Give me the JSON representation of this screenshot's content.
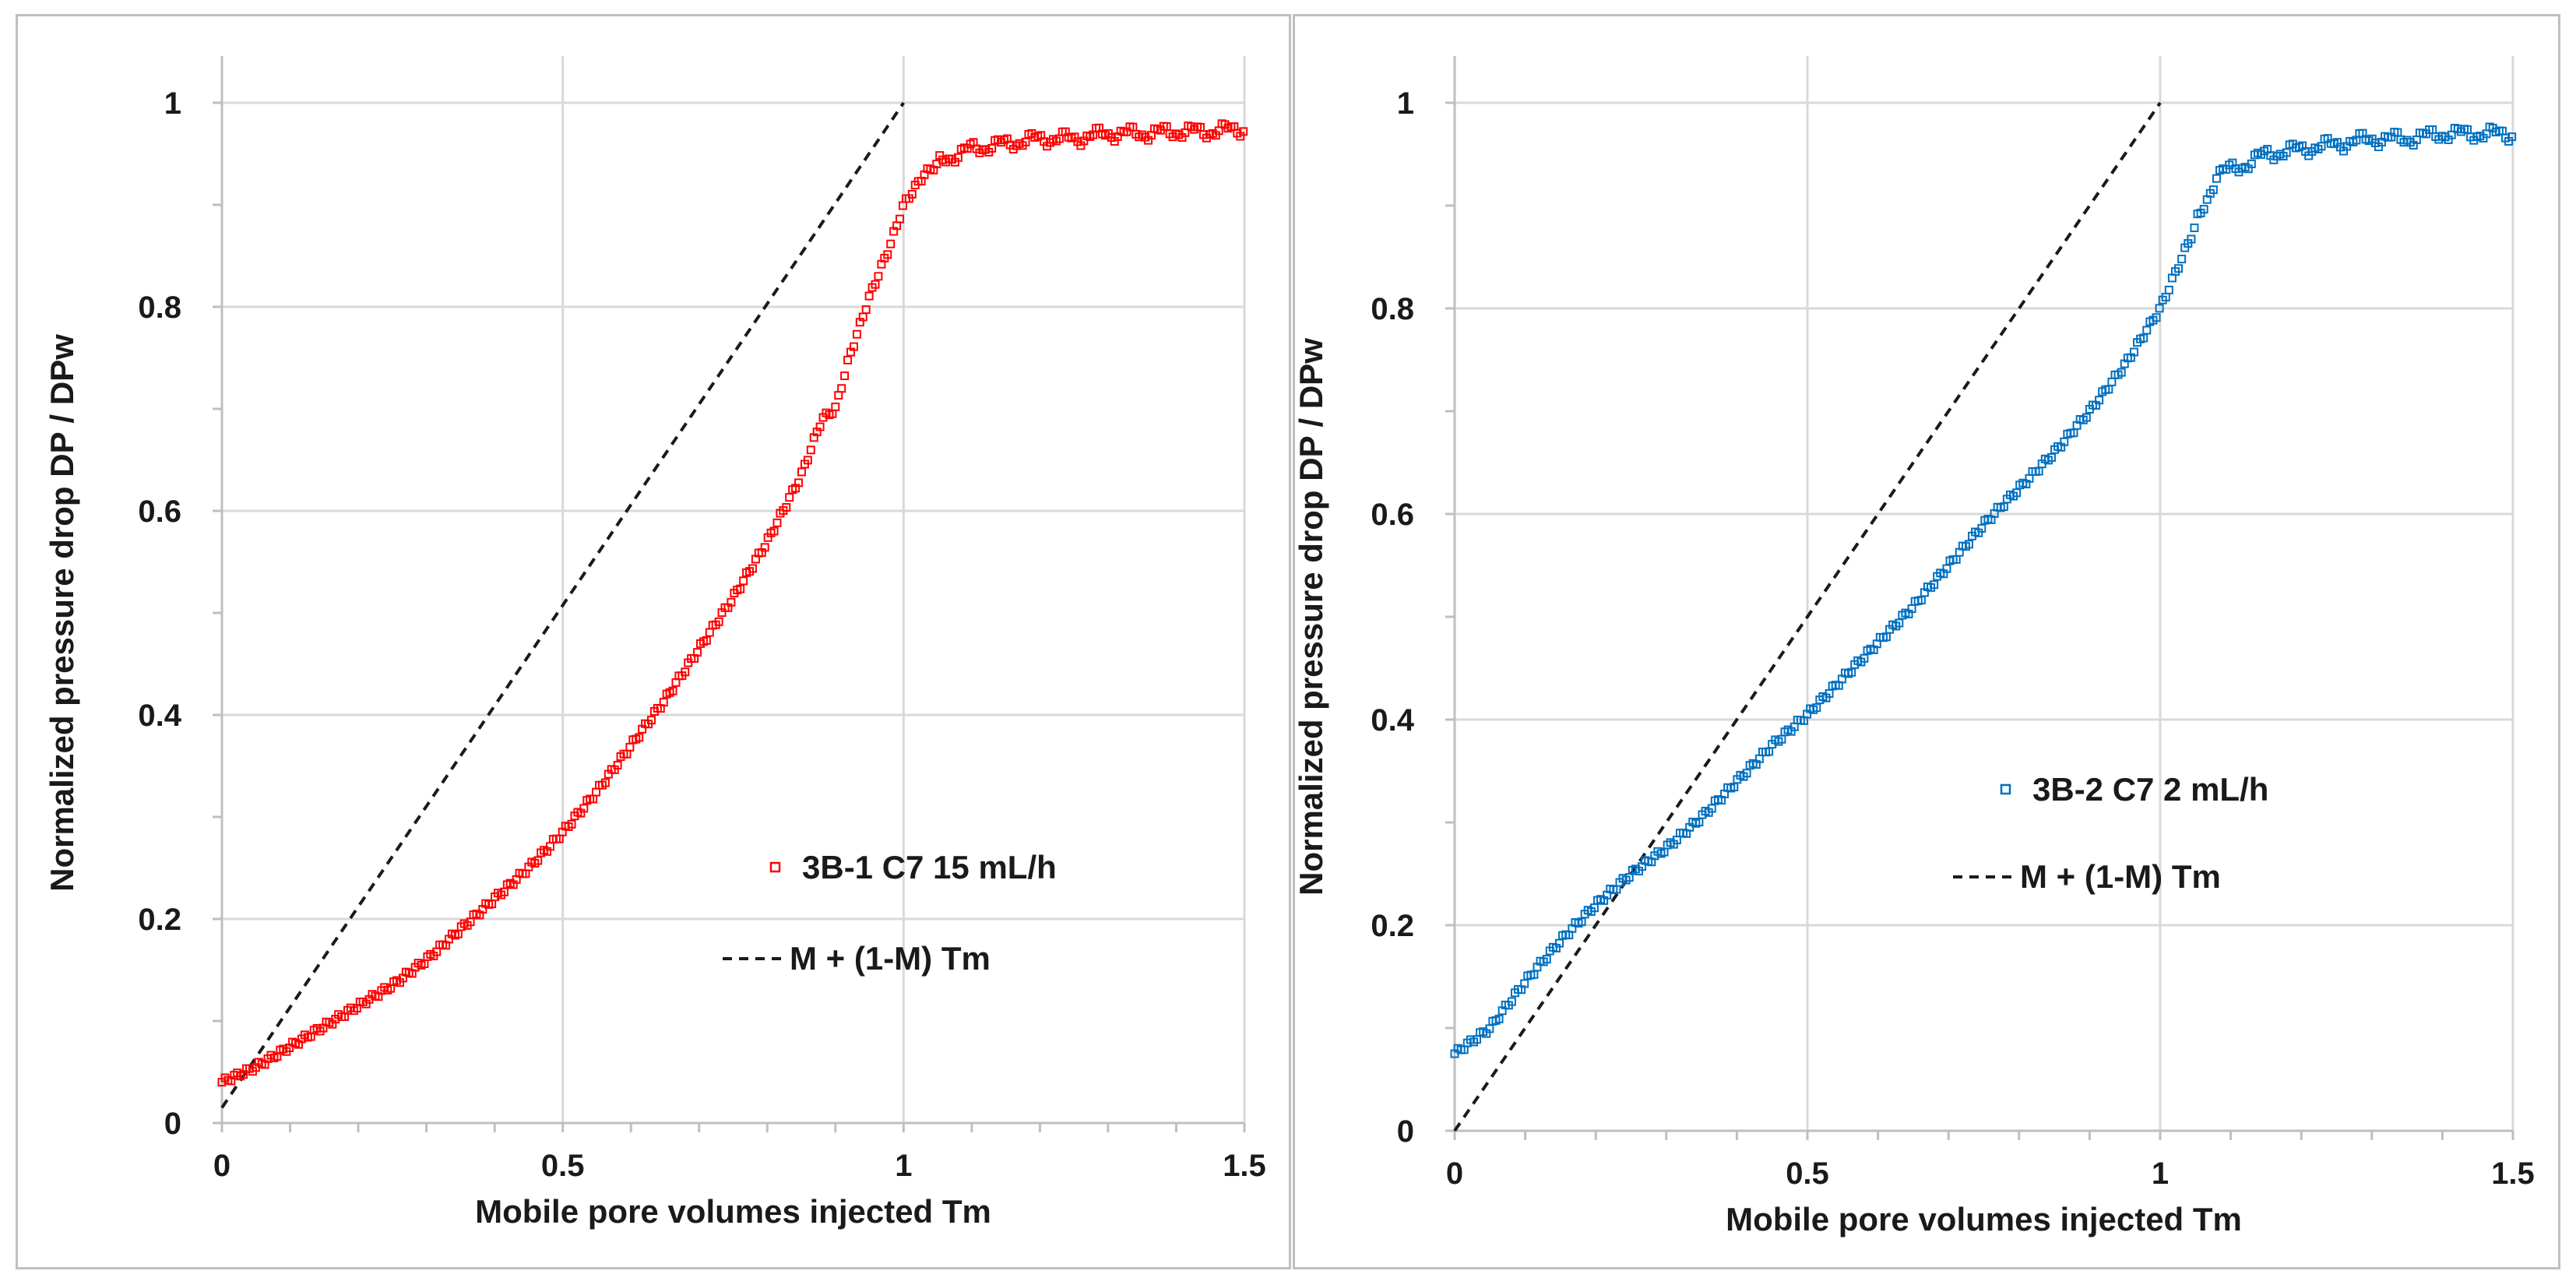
{
  "chart_data": [
    {
      "type": "scatter",
      "title": "",
      "xlabel": "Mobile pore volumes injected Tm",
      "ylabel": "Normalized pressure drop DP / DPw",
      "xlim": [
        0,
        1.5
      ],
      "ylim": [
        0,
        1
      ],
      "xticks": [
        "0",
        "0.5",
        "1",
        "1.5"
      ],
      "yticks": [
        "0",
        "0.2",
        "0.4",
        "0.6",
        "0.8",
        "1"
      ],
      "grid": true,
      "legend_position": "center-right",
      "series": [
        {
          "name": "3B-1 C7 15 mL/h",
          "marker": "hollow-square",
          "color": "#ff0000",
          "x": [
            0,
            0.05,
            0.1,
            0.15,
            0.2,
            0.25,
            0.3,
            0.35,
            0.4,
            0.45,
            0.5,
            0.55,
            0.6,
            0.65,
            0.7,
            0.75,
            0.8,
            0.85,
            0.88,
            0.9,
            0.92,
            0.95,
            0.98,
            1.0,
            1.03,
            1.06,
            1.1,
            1.15,
            1.2,
            1.25,
            1.3,
            1.35,
            1.4,
            1.45,
            1.5
          ],
          "y": [
            0.04,
            0.055,
            0.075,
            0.095,
            0.115,
            0.135,
            0.16,
            0.19,
            0.22,
            0.25,
            0.285,
            0.325,
            0.37,
            0.415,
            0.465,
            0.515,
            0.57,
            0.635,
            0.69,
            0.7,
            0.75,
            0.81,
            0.86,
            0.9,
            0.93,
            0.945,
            0.955,
            0.96,
            0.965,
            0.965,
            0.97,
            0.97,
            0.972,
            0.972,
            0.975
          ]
        },
        {
          "name": "M + (1-M) Tm",
          "line_style": "dashed",
          "color": "#1a1a1a",
          "x": [
            0,
            1
          ],
          "y": [
            0.015,
            1
          ]
        }
      ]
    },
    {
      "type": "scatter",
      "title": "",
      "xlabel": "Mobile pore volumes injected Tm",
      "ylabel": "Normalized pressure drop DP / DPw",
      "xlim": [
        0,
        1.5
      ],
      "ylim": [
        0,
        1
      ],
      "xticks": [
        "0",
        "0.5",
        "1",
        "1.5"
      ],
      "yticks": [
        "0",
        "0.2",
        "0.4",
        "0.6",
        "0.8",
        "1"
      ],
      "grid": true,
      "legend_position": "center-right",
      "series": [
        {
          "name": "3B-2 C7 2 mL/h",
          "marker": "hollow-square",
          "color": "#0070c0",
          "x": [
            0,
            0.05,
            0.1,
            0.15,
            0.2,
            0.25,
            0.3,
            0.35,
            0.4,
            0.45,
            0.5,
            0.55,
            0.6,
            0.65,
            0.7,
            0.75,
            0.8,
            0.85,
            0.9,
            0.95,
            1.0,
            1.05,
            1.08,
            1.12,
            1.15,
            1.2,
            1.25,
            1.3,
            1.35,
            1.4,
            1.45,
            1.5
          ],
          "y": [
            0.075,
            0.1,
            0.145,
            0.185,
            0.22,
            0.25,
            0.275,
            0.305,
            0.34,
            0.375,
            0.405,
            0.44,
            0.475,
            0.51,
            0.55,
            0.59,
            0.625,
            0.66,
            0.7,
            0.745,
            0.8,
            0.88,
            0.93,
            0.94,
            0.95,
            0.955,
            0.96,
            0.965,
            0.965,
            0.97,
            0.97,
            0.97
          ]
        },
        {
          "name": "M + (1-M) Tm",
          "line_style": "dashed",
          "color": "#1a1a1a",
          "x": [
            0,
            1
          ],
          "y": [
            0,
            1
          ]
        }
      ]
    }
  ]
}
